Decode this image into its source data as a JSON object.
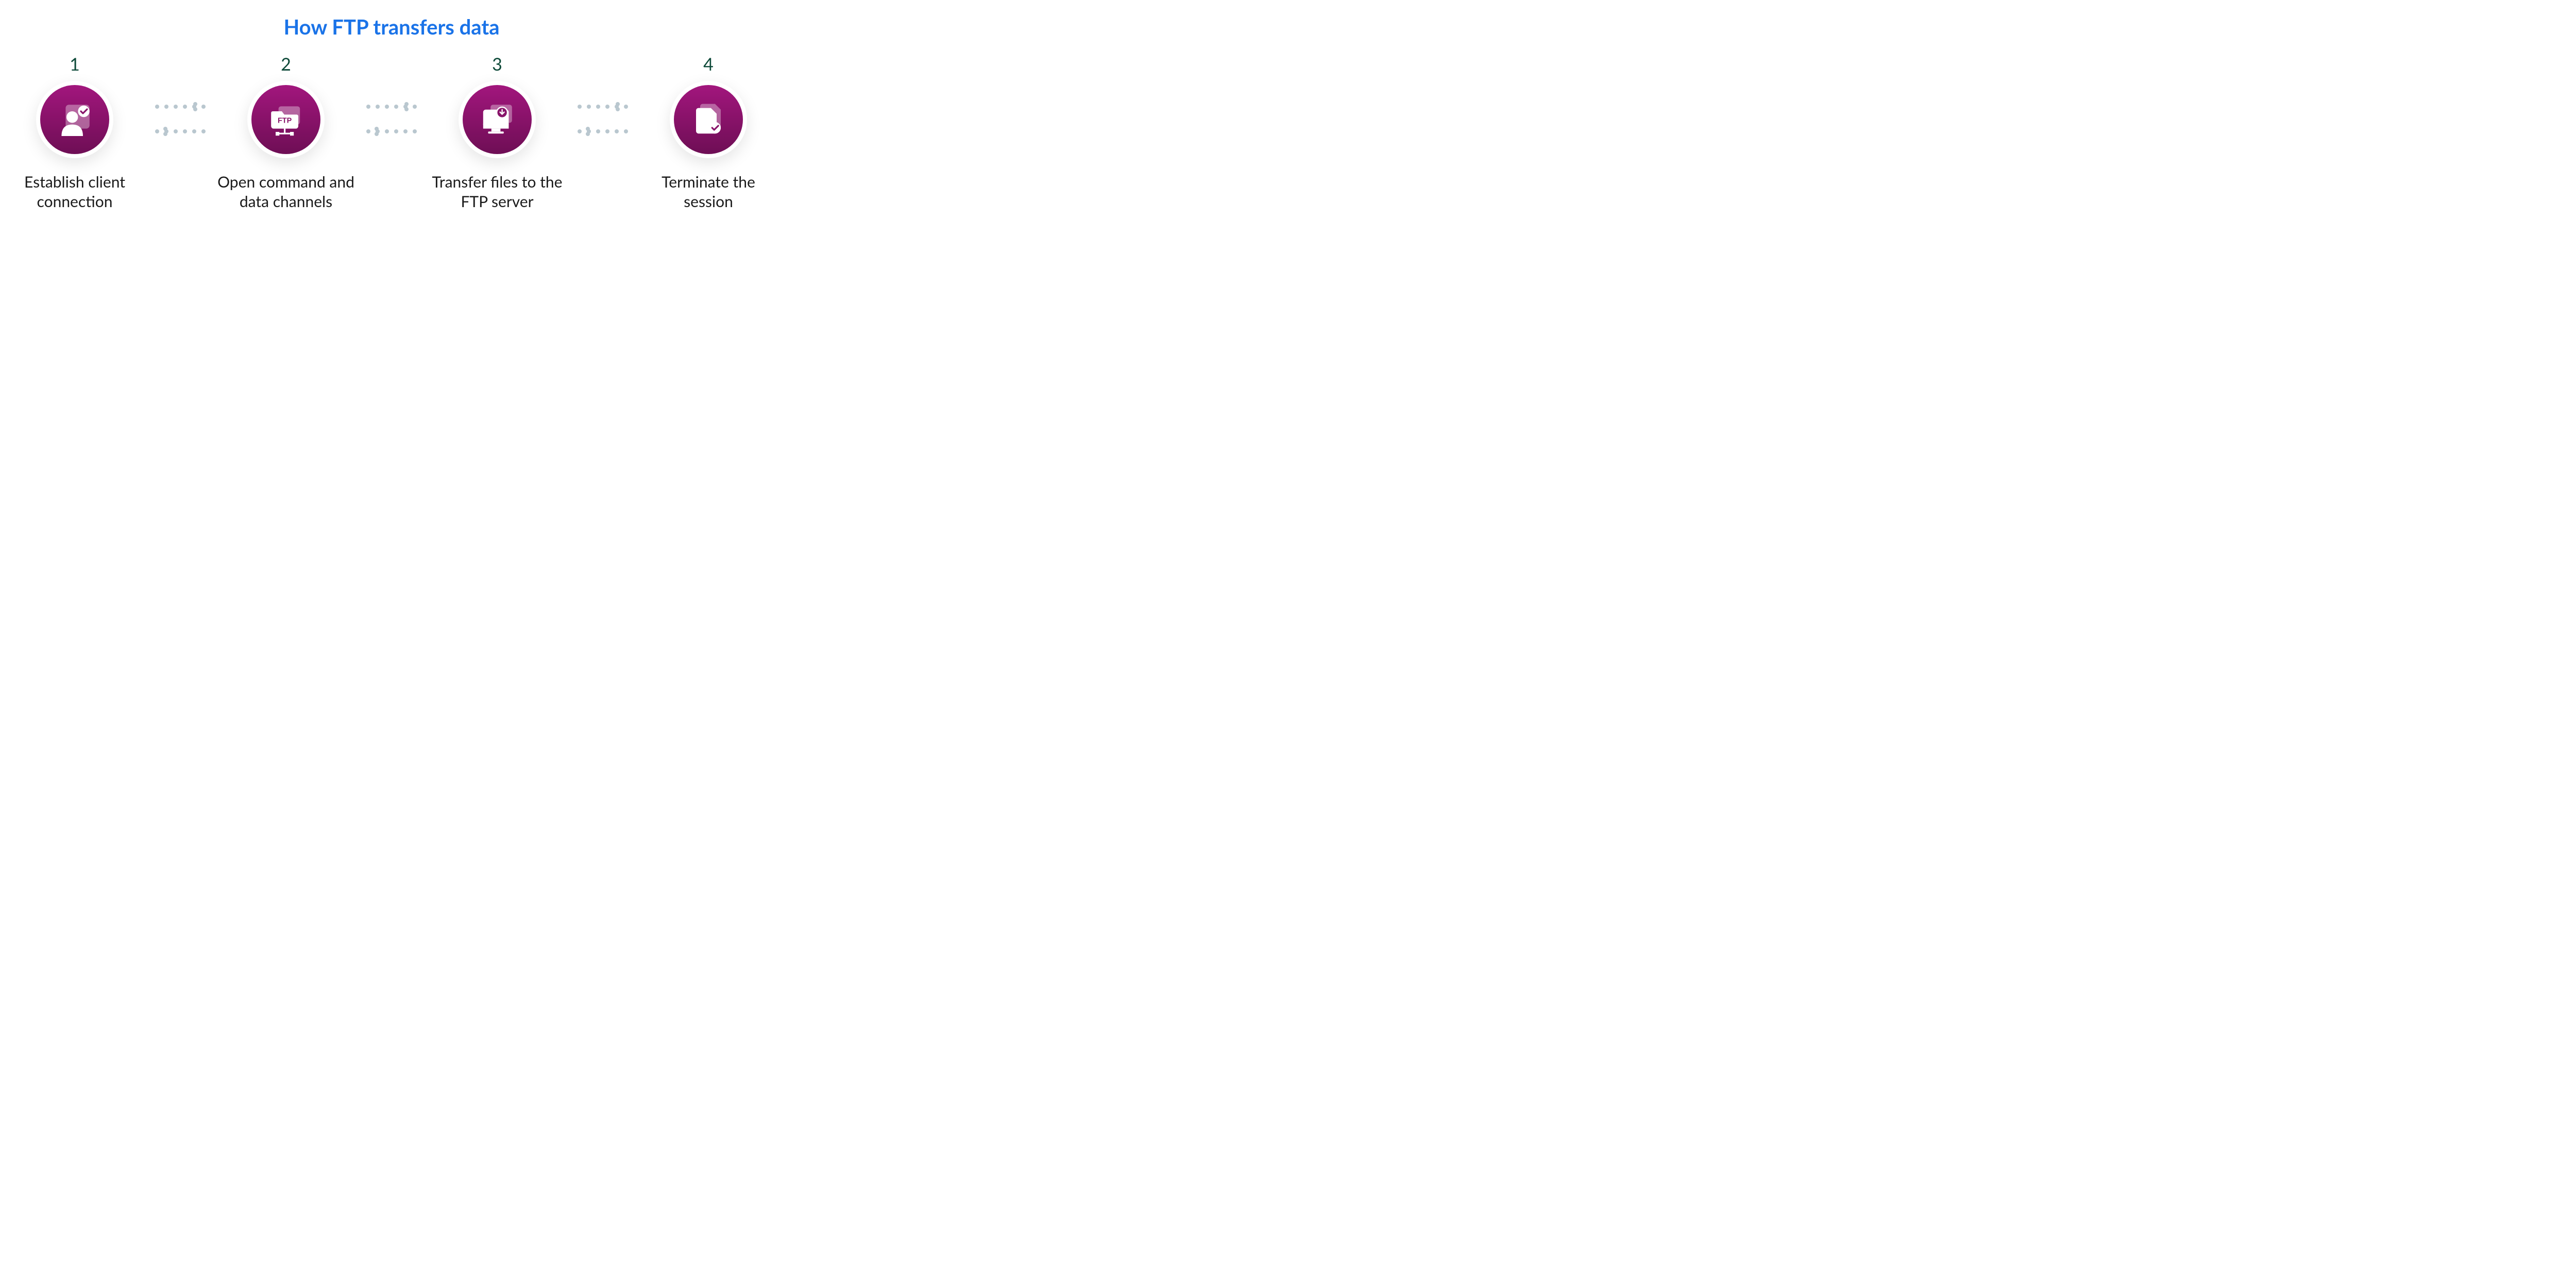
{
  "type": "infographic",
  "title": "How FTP transfers data",
  "title_color": "#1a73e8",
  "title_fontsize": 40,
  "title_fontweight": 700,
  "background_color": "#ffffff",
  "step_number_color": "#0e4a39",
  "step_number_fontsize": 34,
  "step_label_color": "#1a1a1a",
  "step_label_fontsize": 30,
  "circle_fill_top": "#a2167d",
  "circle_fill_bottom": "#6e0e55",
  "circle_diameter": 134,
  "circle_shadow": "0 10px 30px rgba(0,0,0,0.10)",
  "icon_color": "#ffffff",
  "icon_overlay_opacity": 0.35,
  "connector_dot_color": "#b9c7cf",
  "connector_dot_size": 8,
  "connector_dot_gap": 10,
  "steps": [
    {
      "num": "1",
      "label": "Establish client connection",
      "icon": "user-check"
    },
    {
      "num": "2",
      "label": "Open command and data channels",
      "icon": "ftp-folder"
    },
    {
      "num": "3",
      "label": "Transfer files to the FTP server",
      "icon": "download-monitor"
    },
    {
      "num": "4",
      "label": "Terminate the session",
      "icon": "file-check"
    }
  ]
}
